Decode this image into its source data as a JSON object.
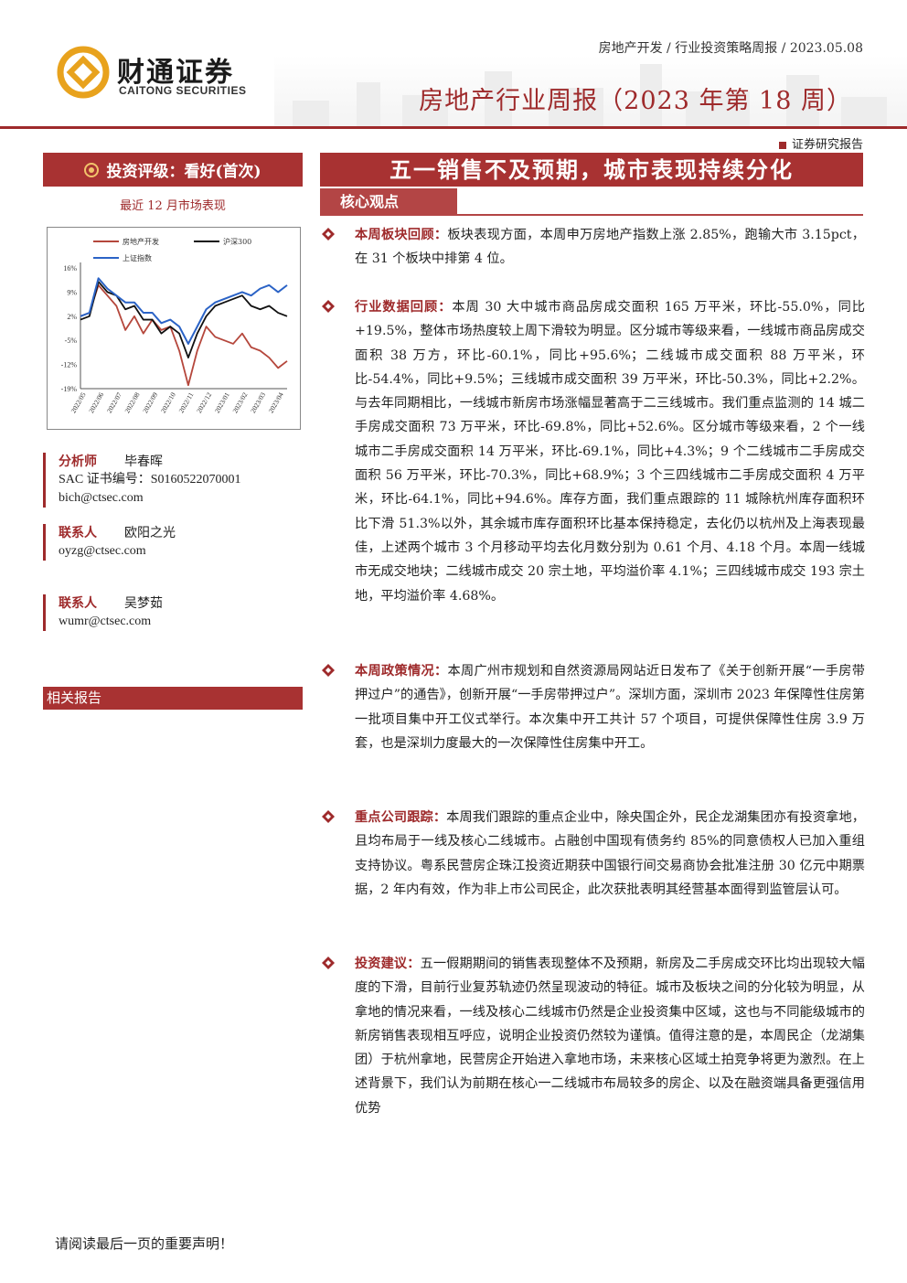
{
  "brand": {
    "name_cn": "财通证券",
    "name_en": "CAITONG SECURITIES"
  },
  "header": {
    "meta": "房地产开发 / 行业投资策略周报 / 2023.05.08",
    "title": "房地产行业周报（2023 年第 18 周）",
    "doc_type": "证券研究报告"
  },
  "sidebar": {
    "rating": "投资评级：看好(首次)",
    "chart_caption": "最近 12 月市场表现",
    "contacts": [
      {
        "role": "分析师",
        "name": "毕春晖",
        "lines": [
          "SAC 证书编号：S0160522070001",
          "bich@ctsec.com"
        ]
      },
      {
        "role": "联系人",
        "name": "欧阳之光",
        "lines": [
          "oyzg@ctsec.com"
        ]
      },
      {
        "role": "联系人",
        "name": "吴梦茹",
        "lines": [
          "wumr@ctsec.com"
        ]
      }
    ],
    "related": "相关报告"
  },
  "main": {
    "title": "五一销售不及预期，城市表现持续分化",
    "core_tab": "核心观点",
    "bullets": [
      {
        "label": "本周板块回顾：",
        "text": "板块表现方面，本周申万房地产指数上涨 2.85%，跑输大市 3.15pct，在 31 个板块中排第 4 位。"
      },
      {
        "label": "行业数据回顾：",
        "text": "本周 30 大中城市商品房成交面积 165 万平米，环比-55.0%，同比+19.5%，整体市场热度较上周下滑较为明显。区分城市等级来看，一线城市商品房成交面积 38 万方，环比-60.1%，同比+95.6%；二线城市成交面积 88 万平米，环比-54.4%，同比+9.5%；三线城市成交面积 39 万平米，环比-50.3%，同比+2.2%。与去年同期相比，一线城市新房市场涨幅显著高于二三线城市。我们重点监测的 14 城二手房成交面积 73 万平米，环比-69.8%，同比+52.6%。区分城市等级来看，2 个一线城市二手房成交面积 14 万平米，环比-69.1%，同比+4.3%；9 个二线城市二手房成交面积 56 万平米，环比-70.3%，同比+68.9%；3 个三四线城市二手房成交面积 4 万平米，环比-64.1%，同比+94.6%。库存方面，我们重点跟踪的 11 城除杭州库存面积环比下滑 51.3%以外，其余城市库存面积环比基本保持稳定，去化仍以杭州及上海表现最佳，上述两个城市 3 个月移动平均去化月数分别为 0.61 个月、4.18 个月。本周一线城市无成交地块；二线城市成交 20 宗土地，平均溢价率 4.1%；三四线城市成交 193 宗土地，平均溢价率 4.68%。"
      },
      {
        "label": "本周政策情况：",
        "text": "本周广州市规划和自然资源局网站近日发布了《关于创新开展“一手房带押过户”的通告》，创新开展“一手房带押过户”。深圳方面，深圳市 2023 年保障性住房第一批项目集中开工仪式举行。本次集中开工共计 57 个项目，可提供保障性住房 3.9 万套，也是深圳力度最大的一次保障性住房集中开工。"
      },
      {
        "label": "重点公司跟踪：",
        "text": "本周我们跟踪的重点企业中，除央国企外，民企龙湖集团亦有投资拿地，且均布局于一线及核心二线城市。占融创中国现有债务约 85%的同意债权人已加入重组支持协议。粤系民营房企珠江投资近期获中国银行间交易商协会批准注册 30 亿元中期票据，2 年内有效，作为非上市公司民企，此次获批表明其经营基本面得到监管层认可。"
      },
      {
        "label": "投资建议：",
        "text": "五一假期期间的销售表现整体不及预期，新房及二手房成交环比均出现较大幅度的下滑，目前行业复苏轨迹仍然呈现波动的特征。城市及板块之间的分化较为明显，从拿地的情况来看，一线及核心二线城市仍然是企业投资集中区域，这也与不同能级城市的新房销售表现相互呼应，说明企业投资仍然较为谨慎。值得注意的是，本周民企（龙湖集团）于杭州拿地，民营房企开始进入拿地市场，未来核心区域土拍竞争将更为激烈。在上述背景下，我们认为前期在核心一二线城市布局较多的房企、以及在融资端具备更强信用优势"
      }
    ]
  },
  "footer": {
    "note": "请阅读最后一页的重要声明！"
  },
  "chart_data": {
    "type": "line",
    "title": "",
    "legend": [
      "房地产开发",
      "沪深300",
      "上证指数"
    ],
    "legend_placement": "top",
    "x_ticks": [
      "2022/05",
      "2022/06",
      "2022/07",
      "2022/08",
      "2022/09",
      "2022/10",
      "2022/11",
      "2022/12",
      "2023/01",
      "2023/02",
      "2023/03",
      "2023/04"
    ],
    "y_ticks": [
      "16%",
      "9%",
      "2%",
      "-5%",
      "-12%",
      "-19%"
    ],
    "ylim": [
      -19,
      16
    ],
    "x": [
      0,
      0.5,
      1,
      1.5,
      2,
      2.5,
      3,
      3.5,
      4,
      4.5,
      5,
      5.5,
      6,
      6.5,
      7,
      7.5,
      8,
      8.5,
      9,
      9.5,
      10,
      10.5,
      11,
      11.5
    ],
    "series": [
      {
        "name": "房地产开发",
        "color": "#b5473c",
        "values": [
          2,
          3,
          11,
          8,
          5,
          -2,
          2,
          -3,
          1,
          -2,
          -1,
          -8,
          -18,
          -8,
          -1,
          -4,
          -5,
          -6,
          -3,
          -7,
          -8,
          -10,
          -13,
          -11
        ]
      },
      {
        "name": "沪深300",
        "color": "#111111",
        "values": [
          1,
          2,
          12,
          9,
          8,
          4,
          5,
          1,
          1,
          -3,
          -1,
          -3,
          -10,
          -3,
          2,
          5,
          6,
          7,
          8,
          5,
          4,
          5,
          3,
          2
        ]
      },
      {
        "name": "上证指数",
        "color": "#2b63c6",
        "values": [
          2,
          3,
          13,
          10,
          8,
          6,
          6,
          3,
          3,
          0,
          1,
          -1,
          -6,
          -1,
          4,
          6,
          7,
          8,
          9,
          8,
          10,
          11,
          9,
          11
        ]
      }
    ]
  }
}
